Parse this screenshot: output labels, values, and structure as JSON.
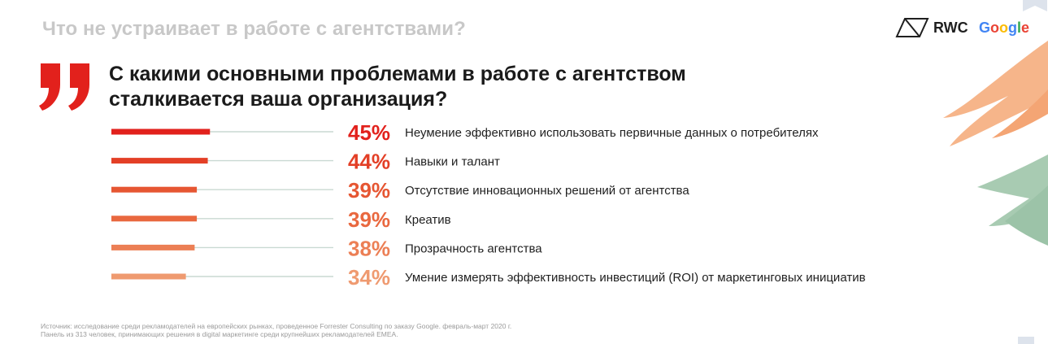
{
  "header": {
    "section_title": "Что не устраивает в работе с агентствами?"
  },
  "logos": {
    "rwc": "RWC",
    "google": "Google"
  },
  "question": {
    "line1": "С какими основными проблемами в работе с агентством",
    "line2": "сталкивается ваша организация?"
  },
  "colors": {
    "quote": "#e2211c",
    "track": "#c9d9d2",
    "bars": [
      "#e2211c",
      "#e33f26",
      "#e65632",
      "#e9683f",
      "#ec7f55",
      "#ef9a70"
    ],
    "google": [
      "#4285f4",
      "#ea4335",
      "#fbbc05",
      "#4285f4",
      "#34a853",
      "#ea4335"
    ]
  },
  "chart_data": {
    "type": "bar",
    "orientation": "horizontal",
    "categories": [
      "Неумение эффективно использовать первичные данных о потребителях",
      "Навыки и талант",
      "Отсутствие инновационных решений от агентства",
      "Креатив",
      "Прозрачность агентства",
      "Умение измерять эффективность инвестиций (ROI) от маркетинговых инициатив"
    ],
    "values": [
      45,
      44,
      39,
      39,
      38,
      34
    ],
    "value_labels": [
      "45%",
      "44%",
      "39%",
      "39%",
      "38%",
      "34%"
    ],
    "unit": "%",
    "xlim": [
      0,
      100
    ],
    "grid": false,
    "legend": "none"
  },
  "footnote": {
    "line1": "Источник: исследование среди рекламодателей на европейских рынках, проведенное Forrester Consulting по заказу Google. февраль-март 2020 г.",
    "line2": "Панель из 313 человек, принимающих решения в digital маркетинге среди крупнейших рекламодателей EMEA."
  }
}
